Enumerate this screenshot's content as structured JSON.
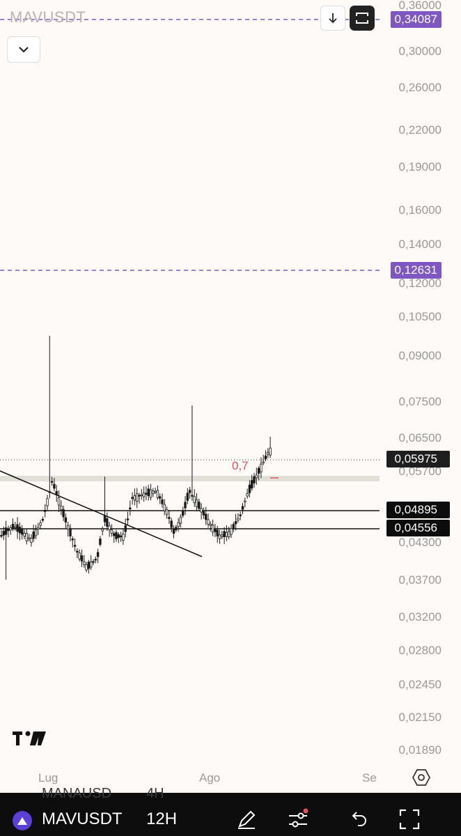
{
  "symbol": "MAVUSDT",
  "header": {
    "title": "MAVUSDT"
  },
  "axis": {
    "price_labels": [
      {
        "text": "0,36000",
        "value": 0.36
      },
      {
        "text": "0,30000",
        "value": 0.3
      },
      {
        "text": "0,26000",
        "value": 0.26
      },
      {
        "text": "0,22000",
        "value": 0.22
      },
      {
        "text": "0,19000",
        "value": 0.19
      },
      {
        "text": "0,16000",
        "value": 0.16
      },
      {
        "text": "0,14000",
        "value": 0.14
      },
      {
        "text": "0,12000",
        "value": 0.12
      },
      {
        "text": "0,10500",
        "value": 0.105
      },
      {
        "text": "0,09000",
        "value": 0.09
      },
      {
        "text": "0,07500",
        "value": 0.075
      },
      {
        "text": "0,06500",
        "value": 0.065
      },
      {
        "text": "0,05700",
        "value": 0.057
      },
      {
        "text": "0,04300",
        "value": 0.043
      },
      {
        "text": "0,03700",
        "value": 0.037
      },
      {
        "text": "0,03200",
        "value": 0.032
      },
      {
        "text": "0,02800",
        "value": 0.028
      },
      {
        "text": "0,02450",
        "value": 0.0245
      },
      {
        "text": "0,02150",
        "value": 0.0215
      },
      {
        "text": "0,01890",
        "value": 0.0189
      }
    ],
    "time_labels": [
      "Lug",
      "Ago",
      "Se"
    ]
  },
  "price_tags": [
    {
      "text": "0,34087",
      "value": 0.34087,
      "bg": "#7e57c2"
    },
    {
      "text": "0,12631",
      "value": 0.12631,
      "bg": "#7e57c2"
    },
    {
      "text": "0,05975",
      "value": 0.05975,
      "bg": "#1e1e1e"
    },
    {
      "text": "0,04895",
      "value": 0.04895,
      "bg": "#0c0c0c"
    },
    {
      "text": "0,04556",
      "value": 0.04556,
      "bg": "#0c0c0c"
    }
  ],
  "annotation": {
    "fib_label": "0,7"
  },
  "bottom_bar": {
    "symbol": "MAVUSDT",
    "interval": "12H",
    "ghost_symbol": "MANAUSD",
    "ghost_interval": "4H"
  },
  "colors": {
    "accent": "#7e57c2",
    "candle": "#1a1a1a",
    "background": "#fdfaf8",
    "fib_red": "#e0525e"
  },
  "icons": [
    "chevron-down-icon",
    "arrow-down-icon",
    "fullscreen-icon",
    "settings-icon",
    "tradingview-logo-icon",
    "draw-pen-icon",
    "indicators-icon",
    "undo-icon",
    "expand-icon"
  ]
}
